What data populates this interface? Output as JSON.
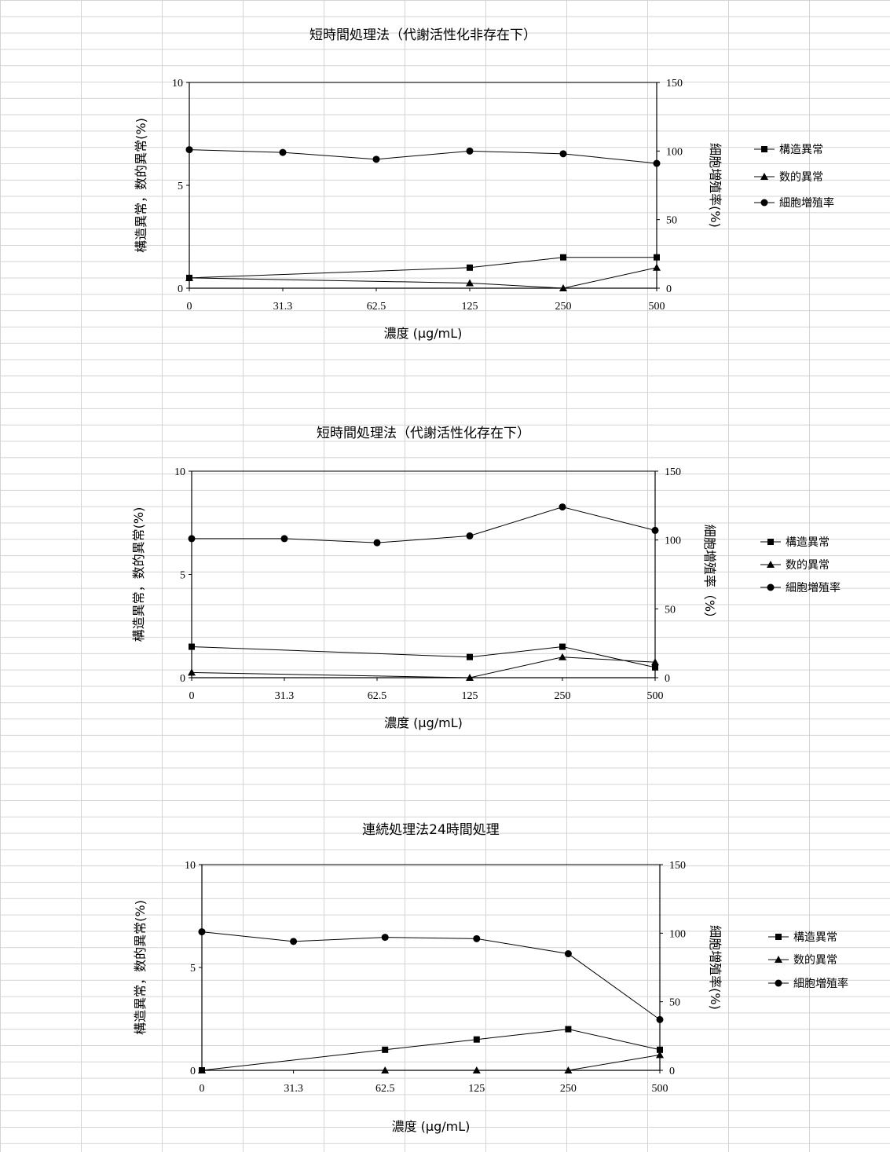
{
  "chart_data": [
    {
      "type": "line",
      "title": "短時間処理法（代謝活性化非存在下）",
      "xlabel": "濃度 (μg/mL)",
      "ylabel": "構造異常，数的異常(%)",
      "y2label": "細胞増殖率(%)",
      "categories": [
        "0",
        "31.3",
        "62.5",
        "125",
        "250",
        "500"
      ],
      "ylim": [
        0,
        10
      ],
      "y2lim": [
        0,
        150
      ],
      "yticks": [
        "0",
        "5",
        "10"
      ],
      "y2ticks": [
        "0",
        "50",
        "100",
        "150"
      ],
      "legend": "right",
      "series": [
        {
          "name": "構造異常",
          "axis": "left",
          "marker": "square",
          "x": [
            0,
            3,
            4,
            5
          ],
          "values": [
            0.5,
            1.0,
            1.5,
            1.5
          ]
        },
        {
          "name": "数的異常",
          "axis": "left",
          "marker": "triangle",
          "x": [
            0,
            3,
            4,
            5
          ],
          "values": [
            0.5,
            0.25,
            0.0,
            1.0
          ]
        },
        {
          "name": "細胞増殖率",
          "axis": "right",
          "marker": "circle",
          "x": [
            0,
            1,
            2,
            3,
            4,
            5
          ],
          "values": [
            101,
            99,
            94,
            100,
            98,
            91
          ]
        }
      ]
    },
    {
      "type": "line",
      "title": "短時間処理法（代謝活性化存在下）",
      "xlabel": "濃度 (μg/mL)",
      "ylabel": "構造異常，数的異常(%)",
      "y2label": "細胞増殖率（%）",
      "categories": [
        "0",
        "31.3",
        "62.5",
        "125",
        "250",
        "500"
      ],
      "ylim": [
        0,
        10
      ],
      "y2lim": [
        0,
        150
      ],
      "yticks": [
        "0",
        "5",
        "10"
      ],
      "y2ticks": [
        "0",
        "50",
        "100",
        "150"
      ],
      "legend": "right",
      "series": [
        {
          "name": "構造異常",
          "axis": "left",
          "marker": "square",
          "x": [
            0,
            3,
            4,
            5
          ],
          "values": [
            1.5,
            1.0,
            1.5,
            0.5
          ]
        },
        {
          "name": "数的異常",
          "axis": "left",
          "marker": "triangle",
          "x": [
            0,
            3,
            4,
            5
          ],
          "values": [
            0.25,
            0.0,
            1.0,
            0.75
          ]
        },
        {
          "name": "細胞増殖率",
          "axis": "right",
          "marker": "circle",
          "x": [
            0,
            1,
            2,
            3,
            4,
            5
          ],
          "values": [
            101,
            101,
            98,
            103,
            124,
            107
          ]
        }
      ]
    },
    {
      "type": "line",
      "title": "連続処理法24時間処理",
      "xlabel": "濃度 (μg/mL)",
      "ylabel": "構造異常，数的異常(%)",
      "y2label": "細胞増殖率(%)",
      "categories": [
        "0",
        "31.3",
        "62.5",
        "125",
        "250",
        "500"
      ],
      "ylim": [
        0,
        10
      ],
      "y2lim": [
        0,
        150
      ],
      "yticks": [
        "0",
        "5",
        "10"
      ],
      "y2ticks": [
        "0",
        "50",
        "100",
        "150"
      ],
      "legend": "right",
      "series": [
        {
          "name": "構造異常",
          "axis": "left",
          "marker": "square",
          "x": [
            0,
            2,
            3,
            4,
            5
          ],
          "values": [
            0.0,
            1.0,
            1.5,
            2.0,
            1.0
          ]
        },
        {
          "name": "数的異常",
          "axis": "left",
          "marker": "triangle",
          "x": [
            0,
            2,
            3,
            4,
            5
          ],
          "values": [
            0.0,
            0.0,
            0.0,
            0.0,
            0.75
          ]
        },
        {
          "name": "細胞増殖率",
          "axis": "right",
          "marker": "circle",
          "x": [
            0,
            1,
            2,
            3,
            4,
            5
          ],
          "values": [
            101,
            94,
            97,
            96,
            85,
            37
          ]
        }
      ]
    }
  ]
}
